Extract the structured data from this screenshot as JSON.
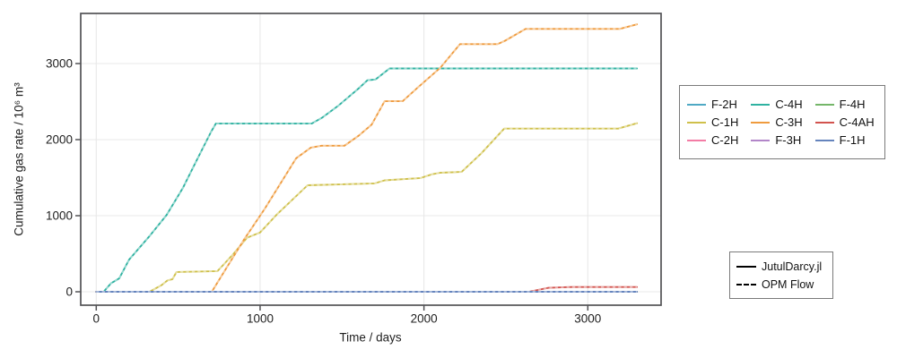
{
  "figure": {
    "xlabel": "Time / days",
    "ylabel": "Cumulative gas rate / 10⁶ m³"
  },
  "chart_data": {
    "type": "line",
    "title": "",
    "xlabel": "Time / days",
    "ylabel": "Cumulative gas rate / 10^6 m^3",
    "xlim": [
      -100,
      3450
    ],
    "ylim": [
      -180,
      3660
    ],
    "x_ticks": [
      0,
      1000,
      2000,
      3000
    ],
    "y_ticks": [
      0,
      1000,
      2000,
      3000
    ],
    "grid": true,
    "legend_position": "right",
    "legend_order": [
      "F-2H",
      "C-4H",
      "F-4H",
      "C-1H",
      "C-3H",
      "C-4AH",
      "C-2H",
      "F-3H",
      "F-1H"
    ],
    "simulators": [
      {
        "label": "JutulDarcy.jl",
        "style": "solid"
      },
      {
        "label": "OPM Flow",
        "style": "dashed"
      }
    ],
    "note": "Each well is plotted twice with overlapping curves: solid = JutulDarcy.jl, dashed = OPM Flow; the two simulators visually coincide.",
    "series": [
      {
        "name": "F-2H",
        "color": "#4fa9c4",
        "points": [
          [
            0,
            0
          ],
          [
            3300,
            0
          ]
        ]
      },
      {
        "name": "C-1H",
        "color": "#cfc04b",
        "points": [
          [
            0,
            0
          ],
          [
            325,
            0
          ],
          [
            400,
            90
          ],
          [
            435,
            150
          ],
          [
            465,
            165
          ],
          [
            490,
            260
          ],
          [
            740,
            272
          ],
          [
            830,
            480
          ],
          [
            920,
            710
          ],
          [
            1000,
            780
          ],
          [
            1100,
            1010
          ],
          [
            1290,
            1400
          ],
          [
            1700,
            1425
          ],
          [
            1760,
            1465
          ],
          [
            1980,
            1495
          ],
          [
            2050,
            1545
          ],
          [
            2100,
            1565
          ],
          [
            2230,
            1575
          ],
          [
            2350,
            1820
          ],
          [
            2490,
            2145
          ],
          [
            3185,
            2145
          ],
          [
            3300,
            2215
          ]
        ]
      },
      {
        "name": "C-2H",
        "color": "#f37ca5",
        "points": [
          [
            0,
            0
          ],
          [
            3300,
            0
          ]
        ]
      },
      {
        "name": "C-4H",
        "color": "#2fb2a1",
        "points": [
          [
            0,
            0
          ],
          [
            45,
            0
          ],
          [
            90,
            110
          ],
          [
            140,
            175
          ],
          [
            200,
            420
          ],
          [
            330,
            745
          ],
          [
            430,
            1010
          ],
          [
            530,
            1370
          ],
          [
            620,
            1760
          ],
          [
            700,
            2100
          ],
          [
            730,
            2210
          ],
          [
            1315,
            2210
          ],
          [
            1380,
            2290
          ],
          [
            1480,
            2450
          ],
          [
            1600,
            2670
          ],
          [
            1655,
            2780
          ],
          [
            1705,
            2790
          ],
          [
            1790,
            2935
          ],
          [
            3300,
            2935
          ]
        ]
      },
      {
        "name": "C-3H",
        "color": "#ef9b3e",
        "points": [
          [
            0,
            0
          ],
          [
            705,
            0
          ],
          [
            800,
            330
          ],
          [
            900,
            680
          ],
          [
            1030,
            1095
          ],
          [
            1220,
            1755
          ],
          [
            1310,
            1895
          ],
          [
            1375,
            1920
          ],
          [
            1515,
            1920
          ],
          [
            1600,
            2050
          ],
          [
            1680,
            2195
          ],
          [
            1760,
            2505
          ],
          [
            1870,
            2505
          ],
          [
            1960,
            2680
          ],
          [
            2100,
            2945
          ],
          [
            2220,
            3255
          ],
          [
            2450,
            3255
          ],
          [
            2495,
            3300
          ],
          [
            2620,
            3455
          ],
          [
            3195,
            3455
          ],
          [
            3300,
            3515
          ]
        ]
      },
      {
        "name": "F-3H",
        "color": "#b286c9",
        "points": [
          [
            0,
            0
          ],
          [
            3300,
            0
          ]
        ]
      },
      {
        "name": "F-4H",
        "color": "#74b669",
        "points": [
          [
            0,
            0
          ],
          [
            3300,
            0
          ]
        ]
      },
      {
        "name": "C-4AH",
        "color": "#d2534e",
        "points": [
          [
            0,
            0
          ],
          [
            2640,
            0
          ],
          [
            2760,
            52
          ],
          [
            2900,
            62
          ],
          [
            3300,
            62
          ]
        ]
      },
      {
        "name": "F-1H",
        "color": "#6584bd",
        "points": [
          [
            0,
            0
          ],
          [
            3300,
            0
          ]
        ]
      }
    ]
  }
}
